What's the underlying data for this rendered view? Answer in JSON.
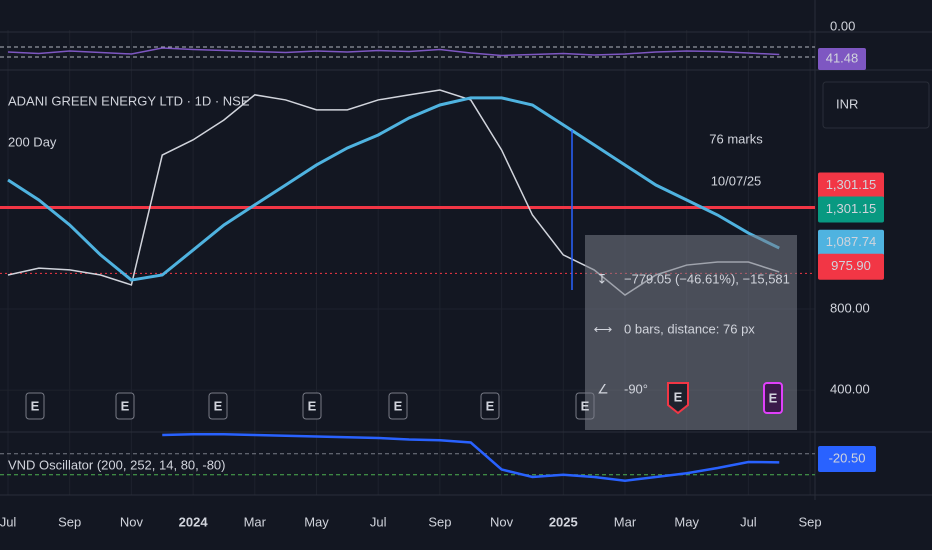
{
  "header": {
    "currency": "INR",
    "earnings_label": "E"
  },
  "chart_data": {
    "type": "line",
    "categories": [
      "Jul",
      null,
      "Sep",
      null,
      "Nov",
      null,
      "2024",
      null,
      "Mar",
      null,
      "May",
      null,
      "Jul",
      null,
      "Sep",
      null,
      "Nov",
      null,
      "2025",
      null,
      "Mar",
      null,
      "May",
      null,
      "Jul",
      null,
      "Sep"
    ],
    "series": [
      {
        "name": "ADANI GREEN ENERGY LTD · 1D · NSE",
        "color": "#d1d4dc",
        "values": [
          968,
          1002,
          993,
          968,
          919,
          1560,
          1635,
          1733,
          1857,
          1832,
          1783,
          1783,
          1832,
          1857,
          1881,
          1832,
          1585,
          1264,
          1067,
          993,
          869,
          968,
          1017,
          1032,
          1032,
          983,
          null
        ]
      },
      {
        "name": "200 Day",
        "color": "#4fb3e0",
        "values": [
          1437,
          1338,
          1215,
          1067,
          943,
          968,
          1091,
          1215,
          1314,
          1412,
          1511,
          1595,
          1659,
          1743,
          1807,
          1842,
          1842,
          1807,
          1709,
          1610,
          1511,
          1412,
          1338,
          1264,
          1175,
          1101,
          null
        ]
      }
    ],
    "ylim": [
      203,
      1955
    ],
    "yticks": [
      {
        "value": 400,
        "label": "400.00"
      },
      {
        "value": 800,
        "label": "800.00"
      }
    ],
    "grid": true,
    "horizontal_line": {
      "value": 1301.15,
      "color": "#f23645"
    },
    "price_labels": [
      {
        "value": 1301.15,
        "label": "1,301.15",
        "color": "#f23645"
      },
      {
        "value": 1301.15,
        "label": "1,301.15",
        "color": "#089981"
      },
      {
        "value": 1087.74,
        "label": "1,087.74",
        "color": "#4fb3e0"
      },
      {
        "value": 975.9,
        "label": "975.90",
        "color": "#f23645"
      }
    ],
    "annotation": [
      "76 marks",
      "10/07/25"
    ],
    "measure": {
      "price_change": "−779.05 (−46.61%), −15,581",
      "bars": "0 bars, distance: 76 px",
      "angle": "-90°"
    },
    "rsi": {
      "top_axis_label": "0.00",
      "color": "#7e57c2",
      "value_label": "41.48",
      "ylim": [
        30,
        70
      ],
      "levels": [
        60,
        40
      ],
      "values": [
        50,
        47,
        52,
        49,
        46,
        58,
        55,
        53,
        51,
        49,
        52,
        50,
        53,
        51,
        55,
        48,
        43,
        45,
        47,
        44,
        46,
        50,
        52,
        51,
        48,
        45,
        null
      ]
    },
    "oscillator": {
      "name": "VND Oscillator (200, 252, 14, 80, -80)",
      "color": "#2962ff",
      "value_label": "-20.50",
      "ylim": [
        -60,
        20
      ],
      "levels": [
        -9,
        -37
      ],
      "values": [
        null,
        null,
        null,
        null,
        null,
        16,
        17,
        17,
        16,
        15,
        14,
        13,
        12,
        10,
        9,
        6,
        -30,
        -40,
        -37,
        -40,
        -45,
        -40,
        -35,
        -28,
        -20,
        -20.5,
        null
      ]
    }
  }
}
